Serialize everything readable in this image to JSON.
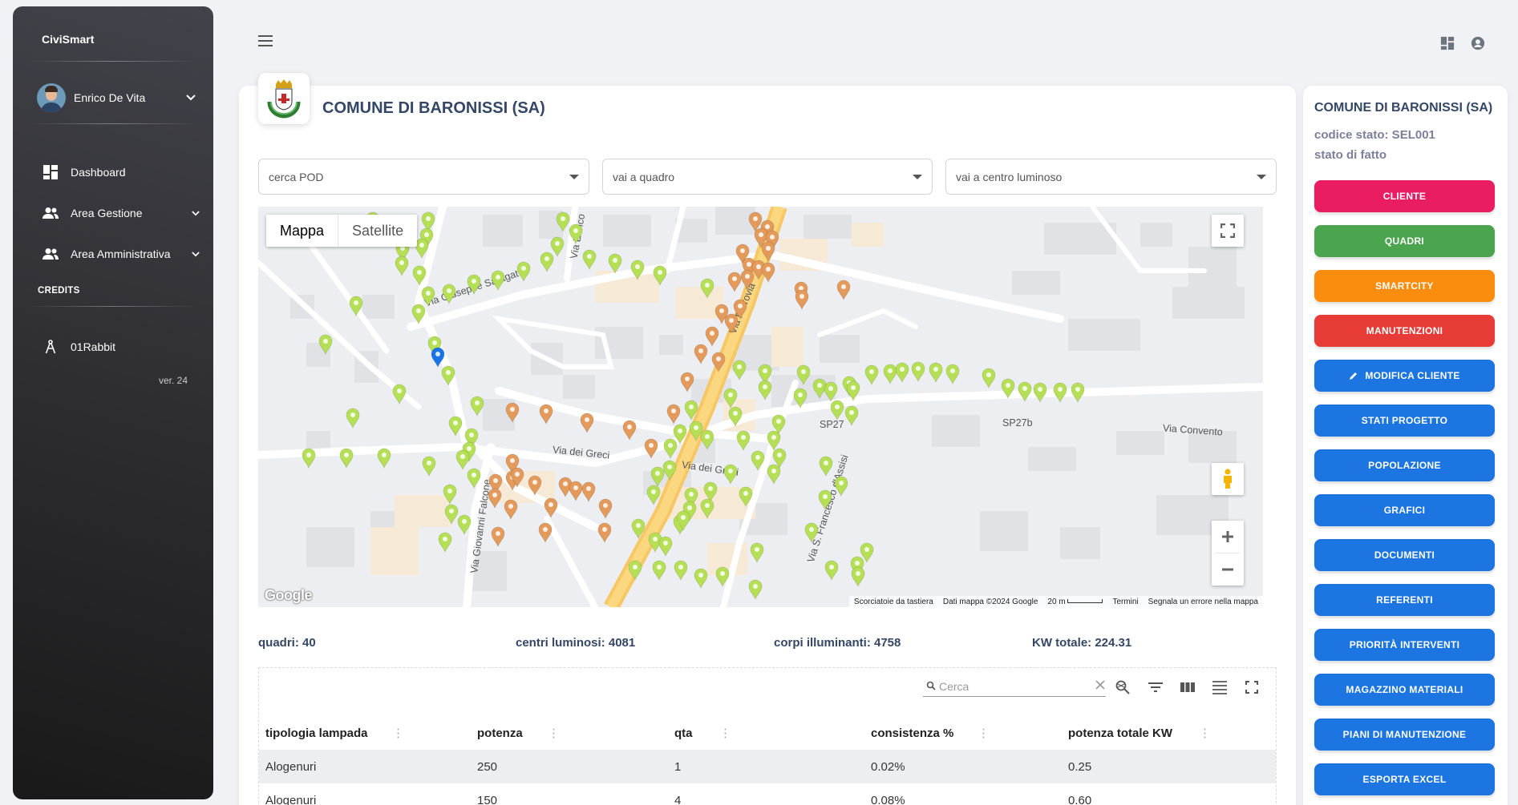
{
  "app": {
    "brand": "CiviSmart",
    "version": "ver. 24"
  },
  "sidebar": {
    "user": {
      "name": "Enrico De Vita"
    },
    "items": [
      {
        "label": "Dashboard",
        "icon": "dashboard-icon"
      },
      {
        "label": "Area Gestione",
        "icon": "people-icon"
      },
      {
        "label": "Area Amministrativa",
        "icon": "people-icon"
      }
    ],
    "credits_label": "CREDITS",
    "credits_item": {
      "label": "01Rabbit",
      "icon": "compass-icon"
    }
  },
  "page": {
    "title": "COMUNE DI BARONISSI (SA)"
  },
  "filters": {
    "pod": "cerca POD",
    "quadro": "vai a quadro",
    "centro": "vai a centro luminoso"
  },
  "map": {
    "tabs": [
      "Mappa",
      "Satellite"
    ],
    "active_tab": "Mappa",
    "roads": [
      "Via Giuseppe Saragat",
      "Via dei Greci",
      "Via dei Greci",
      "Via Giovanni Falcone",
      "Via Ferrovia",
      "SP27b",
      "Via Convento",
      "Via S. Francesco d'Assisi",
      "Via Enrico",
      "SP27"
    ],
    "google": "Google",
    "footer": [
      "Scorciatoie da tastiera",
      "Dati mappa ©2024 Google",
      "20 m",
      "Termini",
      "Segnala un errore nella mappa"
    ],
    "colors": {
      "green": "#b5e055",
      "orange": "#e39a5a",
      "blue": "#1a73e8",
      "road_yellow": "#f7c765"
    }
  },
  "stats": {
    "quadri": "quadri: 40",
    "centri": "centri luminosi: 4081",
    "corpi": "corpi illuminanti: 4758",
    "kw": "KW totale: 224.31"
  },
  "table": {
    "search_placeholder": "Cerca",
    "columns": [
      "tipologia lampada",
      "potenza",
      "qta",
      "consistenza %",
      "potenza totale KW"
    ],
    "rows": [
      [
        "Alogenuri",
        "250",
        "1",
        "0.02%",
        "0.25"
      ],
      [
        "Alogenuri",
        "150",
        "4",
        "0.08%",
        "0.60"
      ]
    ]
  },
  "right_panel": {
    "title": "COMUNE DI BARONISSI (SA)",
    "codice": "codice stato: SEL001",
    "stato": "stato di fatto",
    "buttons": [
      {
        "label": "CLIENTE",
        "color": "#ea1d62"
      },
      {
        "label": "QUADRI",
        "color": "#4aa54e"
      },
      {
        "label": "SMARTCITY",
        "color": "#fb8d0e"
      },
      {
        "label": "MANUTENZIONI",
        "color": "#e63b36"
      },
      {
        "label": "MODIFICA CLIENTE",
        "color": "#1c75e0",
        "icon": "pencil-icon"
      },
      {
        "label": "STATI PROGETTO",
        "color": "#1c75e0"
      },
      {
        "label": "POPOLAZIONE",
        "color": "#1c75e0"
      },
      {
        "label": "GRAFICI",
        "color": "#1c75e0"
      },
      {
        "label": "DOCUMENTI",
        "color": "#1c75e0"
      },
      {
        "label": "REFERENTI",
        "color": "#1c75e0"
      },
      {
        "label": "PRIORITÀ INTERVENTI",
        "color": "#1c75e0"
      },
      {
        "label": "MAGAZZINO MATERIALI",
        "color": "#1c75e0"
      },
      {
        "label": "PIANI DI MANUTENZIONE",
        "color": "#1c75e0"
      },
      {
        "label": "ESPORTA EXCEL",
        "color": "#1c75e0"
      }
    ]
  }
}
